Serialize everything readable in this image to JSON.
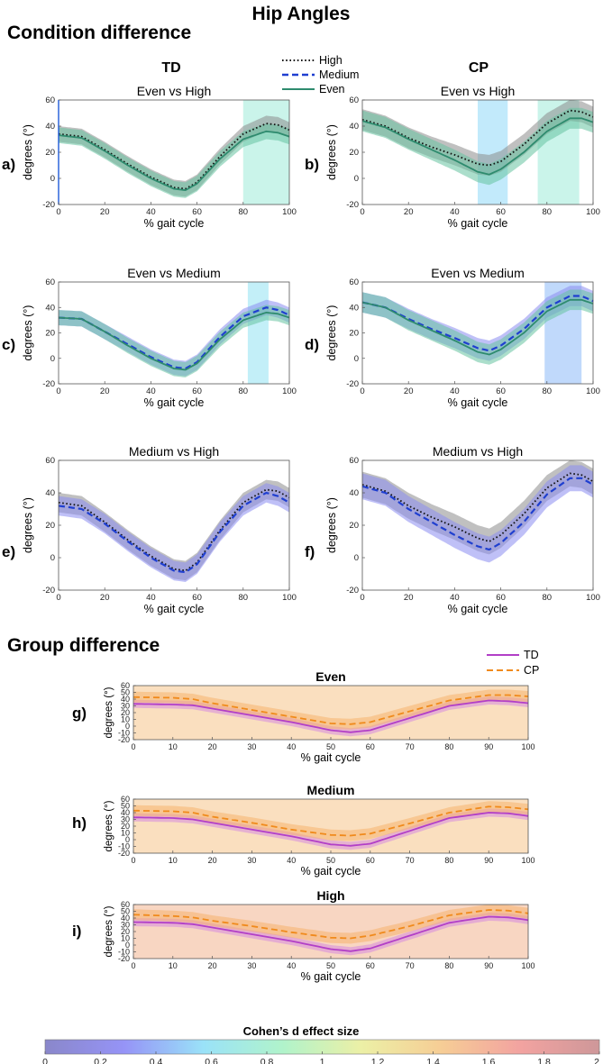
{
  "page": {
    "title": "Hip Angles",
    "section_condition": "Condition difference",
    "section_group": "Group difference",
    "col_td": "TD",
    "col_cp": "CP",
    "colorbar_title": "Cohen’s d effect size"
  },
  "colors": {
    "high": "#111111",
    "medium": "#1f3fd0",
    "even": "#2e8b6e",
    "td": "#b23fc7",
    "cp": "#f08a1c"
  },
  "legends": {
    "condition": [
      {
        "key": "high",
        "label": "High",
        "dash": "dot"
      },
      {
        "key": "medium",
        "label": "Medium",
        "dash": "dash"
      },
      {
        "key": "even",
        "label": "Even",
        "dash": "solid"
      }
    ],
    "group": [
      {
        "key": "td",
        "label": "TD",
        "dash": "solid"
      },
      {
        "key": "cp",
        "label": "CP",
        "dash": "dash"
      }
    ]
  },
  "chart_data": [
    {
      "id": "a",
      "type": "line",
      "letter": "a)",
      "title": "Even vs High",
      "xlabel": "% gait cycle",
      "ylabel": "degrees (°)",
      "xlim": [
        0,
        100
      ],
      "ylim": [
        -20,
        60
      ],
      "xticks": [
        0,
        20,
        40,
        60,
        80,
        100
      ],
      "yticks": [
        -20,
        0,
        20,
        40,
        60
      ],
      "series": [
        {
          "key": "high",
          "name": "High",
          "shade": "#8c8c8c",
          "x": [
            0,
            10,
            20,
            30,
            40,
            50,
            55,
            60,
            70,
            80,
            90,
            95,
            100
          ],
          "y": [
            34,
            32,
            22,
            11,
            1,
            -7,
            -8,
            -3,
            17,
            34,
            42,
            41,
            37
          ],
          "sd": 6
        },
        {
          "key": "even",
          "name": "Even",
          "shade": "#66c2a0",
          "x": [
            0,
            10,
            20,
            30,
            40,
            50,
            55,
            60,
            70,
            80,
            90,
            95,
            100
          ],
          "y": [
            33,
            31,
            21,
            10,
            0,
            -8,
            -9,
            -4,
            15,
            30,
            36,
            35,
            32
          ],
          "sd": 6
        }
      ],
      "significant": [
        {
          "start": 80,
          "end": 100,
          "d": 0.75
        }
      ]
    },
    {
      "id": "b",
      "type": "line",
      "letter": "b)",
      "title": "Even vs High",
      "xlabel": "% gait cycle",
      "ylabel": "degrees (°)",
      "xlim": [
        0,
        100
      ],
      "ylim": [
        -20,
        60
      ],
      "xticks": [
        0,
        20,
        40,
        60,
        80,
        100
      ],
      "yticks": [
        -20,
        0,
        20,
        40,
        60
      ],
      "series": [
        {
          "key": "high",
          "name": "High",
          "shade": "#8c8c8c",
          "x": [
            0,
            10,
            20,
            30,
            40,
            50,
            55,
            60,
            70,
            80,
            90,
            95,
            100
          ],
          "y": [
            45,
            40,
            31,
            24,
            18,
            11,
            10,
            13,
            26,
            42,
            52,
            51,
            47
          ],
          "sd": 8
        },
        {
          "key": "even",
          "name": "Even",
          "shade": "#66c2a0",
          "x": [
            0,
            10,
            20,
            30,
            40,
            50,
            55,
            60,
            70,
            80,
            90,
            95,
            100
          ],
          "y": [
            44,
            39,
            30,
            22,
            14,
            5,
            3,
            7,
            20,
            36,
            46,
            46,
            43
          ],
          "sd": 8
        }
      ],
      "significant": [
        {
          "start": 50,
          "end": 63,
          "d": 0.55
        },
        {
          "start": 76,
          "end": 94,
          "d": 0.75
        }
      ]
    },
    {
      "id": "c",
      "type": "line",
      "letter": "c)",
      "title": "Even vs Medium",
      "xlabel": "% gait cycle",
      "ylabel": "degrees (°)",
      "xlim": [
        0,
        100
      ],
      "ylim": [
        -20,
        60
      ],
      "xticks": [
        0,
        20,
        40,
        60,
        80,
        100
      ],
      "yticks": [
        -20,
        0,
        20,
        40,
        60
      ],
      "series": [
        {
          "key": "medium",
          "name": "Medium",
          "shade": "#8a8cf0",
          "x": [
            0,
            10,
            20,
            30,
            40,
            50,
            55,
            60,
            70,
            80,
            90,
            95,
            100
          ],
          "y": [
            32,
            31,
            21,
            11,
            1,
            -7,
            -8,
            -3,
            17,
            33,
            40,
            38,
            34
          ],
          "sd": 6
        },
        {
          "key": "even",
          "name": "Even",
          "shade": "#66c2a0",
          "x": [
            0,
            10,
            20,
            30,
            40,
            50,
            55,
            60,
            70,
            80,
            90,
            95,
            100
          ],
          "y": [
            32,
            31,
            21,
            10,
            0,
            -8,
            -9,
            -4,
            15,
            30,
            36,
            35,
            32
          ],
          "sd": 6
        }
      ],
      "significant": [
        {
          "start": 82,
          "end": 91,
          "d": 0.6
        }
      ]
    },
    {
      "id": "d",
      "type": "line",
      "letter": "d)",
      "title": "Even vs Medium",
      "xlabel": "% gait cycle",
      "ylabel": "degrees (°)",
      "xlim": [
        0,
        100
      ],
      "ylim": [
        -20,
        60
      ],
      "xticks": [
        0,
        20,
        40,
        60,
        80,
        100
      ],
      "yticks": [
        -20,
        0,
        20,
        40,
        60
      ],
      "series": [
        {
          "key": "medium",
          "name": "Medium",
          "shade": "#8a8cf0",
          "x": [
            0,
            10,
            20,
            30,
            40,
            50,
            55,
            60,
            70,
            80,
            90,
            95,
            100
          ],
          "y": [
            44,
            40,
            31,
            23,
            16,
            8,
            6,
            10,
            23,
            40,
            49,
            49,
            45
          ],
          "sd": 8
        },
        {
          "key": "even",
          "name": "Even",
          "shade": "#66c2a0",
          "x": [
            0,
            10,
            20,
            30,
            40,
            50,
            55,
            60,
            70,
            80,
            90,
            95,
            100
          ],
          "y": [
            44,
            40,
            30,
            22,
            14,
            5,
            3,
            7,
            20,
            37,
            46,
            46,
            43
          ],
          "sd": 8
        }
      ],
      "significant": [
        {
          "start": 79,
          "end": 95,
          "d": 0.45
        }
      ]
    },
    {
      "id": "e",
      "type": "line",
      "letter": "e)",
      "title": "Medium vs High",
      "xlabel": "% gait cycle",
      "ylabel": "degrees (°)",
      "xlim": [
        0,
        100
      ],
      "ylim": [
        -20,
        60
      ],
      "xticks": [
        0,
        20,
        40,
        60,
        80,
        100
      ],
      "yticks": [
        -20,
        0,
        20,
        40,
        60
      ],
      "series": [
        {
          "key": "high",
          "name": "High",
          "shade": "#8c8c8c",
          "x": [
            0,
            10,
            20,
            30,
            40,
            50,
            55,
            60,
            70,
            80,
            90,
            95,
            100
          ],
          "y": [
            34,
            32,
            22,
            11,
            1,
            -7,
            -8,
            -3,
            17,
            34,
            42,
            41,
            37
          ],
          "sd": 6
        },
        {
          "key": "medium",
          "name": "Medium",
          "shade": "#8a8cf0",
          "x": [
            0,
            10,
            20,
            30,
            40,
            50,
            55,
            60,
            70,
            80,
            90,
            95,
            100
          ],
          "y": [
            32,
            30,
            21,
            10,
            0,
            -8,
            -9,
            -4,
            16,
            32,
            40,
            38,
            34
          ],
          "sd": 6
        }
      ],
      "significant": []
    },
    {
      "id": "f",
      "type": "line",
      "letter": "f)",
      "title": "Medium vs High",
      "xlabel": "% gait cycle",
      "ylabel": "degrees (°)",
      "xlim": [
        0,
        100
      ],
      "ylim": [
        -20,
        60
      ],
      "xticks": [
        0,
        20,
        40,
        60,
        80,
        100
      ],
      "yticks": [
        -20,
        0,
        20,
        40,
        60
      ],
      "series": [
        {
          "key": "high",
          "name": "High",
          "shade": "#8c8c8c",
          "x": [
            0,
            10,
            20,
            30,
            40,
            50,
            55,
            60,
            70,
            80,
            90,
            95,
            100
          ],
          "y": [
            45,
            41,
            32,
            25,
            19,
            12,
            10,
            14,
            27,
            43,
            52,
            51,
            47
          ],
          "sd": 8
        },
        {
          "key": "medium",
          "name": "Medium",
          "shade": "#8a8cf0",
          "x": [
            0,
            10,
            20,
            30,
            40,
            50,
            55,
            60,
            70,
            80,
            90,
            95,
            100
          ],
          "y": [
            44,
            40,
            30,
            22,
            14,
            7,
            5,
            9,
            22,
            39,
            49,
            49,
            45
          ],
          "sd": 8
        }
      ],
      "significant": []
    },
    {
      "id": "g",
      "type": "line",
      "letter": "g)",
      "title": "Even",
      "xlabel": "% gait cycle",
      "ylabel": "degrees (°)",
      "xlim": [
        0,
        100
      ],
      "ylim": [
        -20,
        60
      ],
      "xticks": [
        0,
        10,
        20,
        30,
        40,
        50,
        60,
        70,
        80,
        90,
        100
      ],
      "yticks": [
        -20,
        -10,
        0,
        10,
        20,
        30,
        40,
        50,
        60
      ],
      "background_d": 1.45,
      "series": [
        {
          "key": "td",
          "name": "TD",
          "shade": "#d68ae0",
          "x": [
            0,
            10,
            15,
            20,
            30,
            40,
            50,
            55,
            60,
            70,
            80,
            90,
            95,
            100
          ],
          "y": [
            33,
            32,
            31,
            26,
            16,
            6,
            -6,
            -9,
            -6,
            12,
            30,
            38,
            37,
            34
          ],
          "sd": 6
        },
        {
          "key": "cp",
          "name": "CP",
          "shade": "#f5b26e",
          "x": [
            0,
            10,
            15,
            20,
            30,
            40,
            50,
            55,
            60,
            70,
            80,
            90,
            95,
            100
          ],
          "y": [
            43,
            42,
            40,
            34,
            24,
            14,
            4,
            3,
            6,
            22,
            38,
            46,
            46,
            44
          ],
          "sd": 8
        }
      ],
      "significant": []
    },
    {
      "id": "h",
      "type": "line",
      "letter": "h)",
      "title": "Medium",
      "xlabel": "% gait cycle",
      "ylabel": "degrees (°)",
      "xlim": [
        0,
        100
      ],
      "ylim": [
        -20,
        60
      ],
      "xticks": [
        0,
        10,
        20,
        30,
        40,
        50,
        60,
        70,
        80,
        90,
        100
      ],
      "yticks": [
        -20,
        -10,
        0,
        10,
        20,
        30,
        40,
        50,
        60
      ],
      "background_d": 1.45,
      "series": [
        {
          "key": "td",
          "name": "TD",
          "shade": "#d68ae0",
          "x": [
            0,
            10,
            15,
            20,
            30,
            40,
            50,
            55,
            60,
            70,
            80,
            90,
            95,
            100
          ],
          "y": [
            33,
            32,
            30,
            25,
            15,
            5,
            -7,
            -9,
            -6,
            13,
            32,
            40,
            39,
            35
          ],
          "sd": 6
        },
        {
          "key": "cp",
          "name": "CP",
          "shade": "#f5b26e",
          "x": [
            0,
            10,
            15,
            20,
            30,
            40,
            50,
            55,
            60,
            70,
            80,
            90,
            95,
            100
          ],
          "y": [
            43,
            42,
            40,
            34,
            25,
            15,
            7,
            6,
            9,
            24,
            40,
            49,
            48,
            45
          ],
          "sd": 8
        }
      ],
      "significant": []
    },
    {
      "id": "i",
      "type": "line",
      "letter": "i)",
      "title": "High",
      "xlabel": "% gait cycle",
      "ylabel": "degrees (°)",
      "xlim": [
        0,
        100
      ],
      "ylim": [
        -20,
        60
      ],
      "xticks": [
        0,
        10,
        20,
        30,
        40,
        50,
        60,
        70,
        80,
        90,
        100
      ],
      "yticks": [
        -20,
        -10,
        0,
        10,
        20,
        30,
        40,
        50,
        60
      ],
      "background_d": 1.55,
      "series": [
        {
          "key": "td",
          "name": "TD",
          "shade": "#d68ae0",
          "x": [
            0,
            10,
            15,
            20,
            30,
            40,
            50,
            55,
            60,
            70,
            80,
            90,
            95,
            100
          ],
          "y": [
            34,
            33,
            31,
            26,
            16,
            6,
            -6,
            -9,
            -5,
            14,
            33,
            42,
            41,
            37
          ],
          "sd": 6
        },
        {
          "key": "cp",
          "name": "CP",
          "shade": "#f5b26e",
          "x": [
            0,
            10,
            15,
            20,
            30,
            40,
            50,
            55,
            60,
            70,
            80,
            90,
            95,
            100
          ],
          "y": [
            45,
            43,
            41,
            36,
            28,
            19,
            11,
            10,
            14,
            28,
            44,
            52,
            51,
            47
          ],
          "sd": 8
        }
      ],
      "significant": []
    }
  ],
  "colorbar": {
    "type": "colorbar",
    "min": 0,
    "max": 2,
    "ticks": [
      "0",
      "0.2",
      "0.4",
      "0.6",
      "0.8",
      "1",
      "1.2",
      "1.4",
      "1.6",
      "1.8",
      "2"
    ],
    "stops": [
      "#7d7ac4",
      "#8a88f6",
      "#8fdff7",
      "#a8f2c5",
      "#eaee9c",
      "#f5c88a",
      "#f19996",
      "#c98c8e"
    ]
  }
}
